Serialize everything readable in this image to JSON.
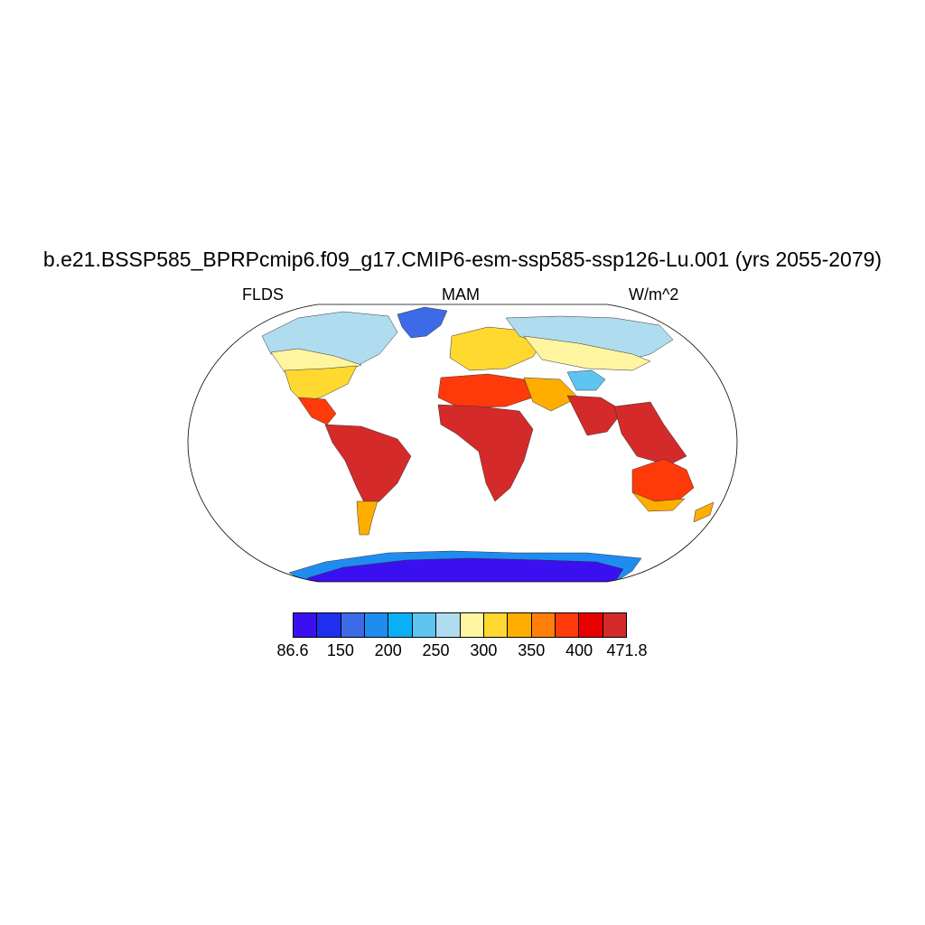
{
  "title": "b.e21.BSSP585_BPRPcmip6.f09_g17.CMIP6-esm-ssp585-ssp126-Lu.001 (yrs 2055-2079)",
  "subtitle_left": "FLDS",
  "subtitle_center": "MAM",
  "subtitle_right": "W/m^2",
  "colorbar": {
    "colors": [
      "#3a10f0",
      "#1f2ff0",
      "#3d6ae6",
      "#1f8cf0",
      "#0ab0f5",
      "#5fc4f0",
      "#b0dcf0",
      "#fff5a0",
      "#ffd830",
      "#ffae00",
      "#ff7f0a",
      "#ff3a0a",
      "#e60000",
      "#d42a2a"
    ],
    "labels": [
      "86.6",
      "150",
      "200",
      "250",
      "300",
      "350",
      "400",
      "471.8"
    ]
  },
  "map_fills": {
    "ocean": "#ffffff",
    "antarctica": "#3a10f0",
    "antarctica_edge": "#1f8cf0",
    "greenland": "#3d6ae6",
    "arctic_land": "#b0dcf0",
    "tropics": "#d42a2a",
    "subtropics": "#ff3a0a",
    "warm_temperate": "#ffae00",
    "temperate": "#ffd830",
    "cool_temperate": "#fff5a0",
    "tibet": "#5fc4f0"
  }
}
